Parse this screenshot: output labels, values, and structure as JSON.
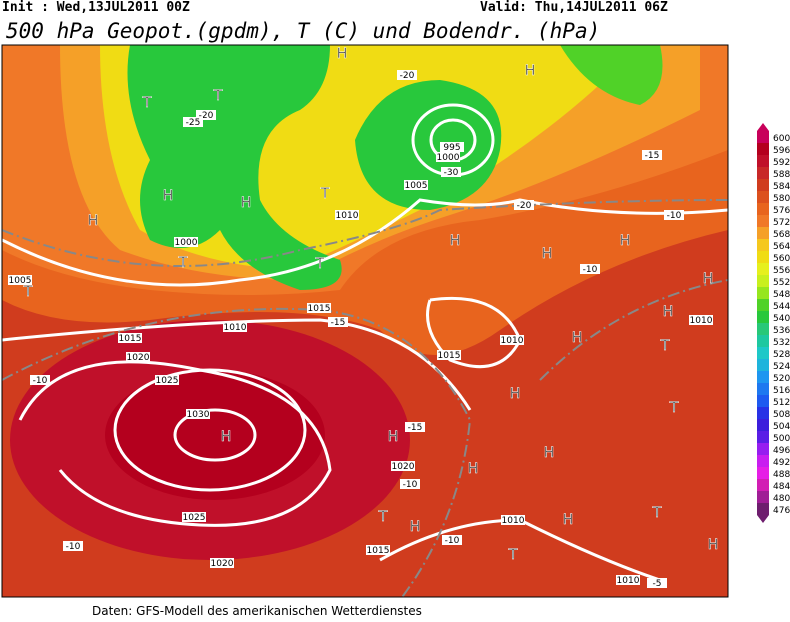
{
  "header": {
    "init": "Init : Wed,13JUL2011 00Z",
    "valid": "Valid: Thu,14JUL2011 06Z",
    "title": "500 hPa Geopot.(gpdm), T (C) und Bodendr. (hPa)"
  },
  "legend": {
    "levels": [
      600,
      596,
      592,
      588,
      584,
      580,
      576,
      572,
      568,
      564,
      560,
      556,
      552,
      548,
      544,
      540,
      536,
      532,
      528,
      524,
      520,
      516,
      512,
      508,
      504,
      500,
      496,
      492,
      488,
      484,
      480,
      476
    ],
    "colors": [
      "#c8005a",
      "#b4001e",
      "#c0102a",
      "#c82828",
      "#d03c1e",
      "#dc501e",
      "#e8641e",
      "#f07828",
      "#f5a028",
      "#f5c81e",
      "#f0dc14",
      "#e6f01e",
      "#c8f01e",
      "#96e61e",
      "#50d228",
      "#28c83c",
      "#28c878",
      "#1ec8a0",
      "#1ec8c8",
      "#1eb4dc",
      "#1e96f0",
      "#1e78f0",
      "#1e5af0",
      "#2832e6",
      "#3c1edc",
      "#5a1ee6",
      "#961ef0",
      "#c81ef0",
      "#e61ee6",
      "#d21eb4",
      "#a01e96",
      "#6e1e6e"
    ]
  },
  "map": {
    "centers": [
      "H",
      "T",
      "T",
      "H",
      "H",
      "H",
      "T",
      "H",
      "T",
      "H",
      "H",
      "H",
      "T",
      "H",
      "T",
      "H",
      "H",
      "T",
      "H",
      "T",
      "H",
      "H",
      "H",
      "H",
      "T",
      "H",
      "H",
      "T",
      "T",
      "H"
    ],
    "isobars": [
      "1030",
      "1025",
      "1025",
      "1020",
      "1020",
      "1015",
      "1015",
      "1015",
      "1010",
      "1010",
      "1010",
      "1010",
      "1005",
      "1000",
      "995",
      "1000",
      "1005",
      "1010",
      "1020",
      "1015",
      "1010"
    ],
    "temperatures": [
      "-10",
      "-10",
      "-15",
      "-10",
      "-10",
      "-20",
      "-25",
      "-30",
      "-15",
      "-10",
      "-10",
      "-5",
      "-20",
      "-15",
      "-20"
    ]
  },
  "footer": "Daten: GFS-Modell des amerikanischen Wetterdienstes"
}
